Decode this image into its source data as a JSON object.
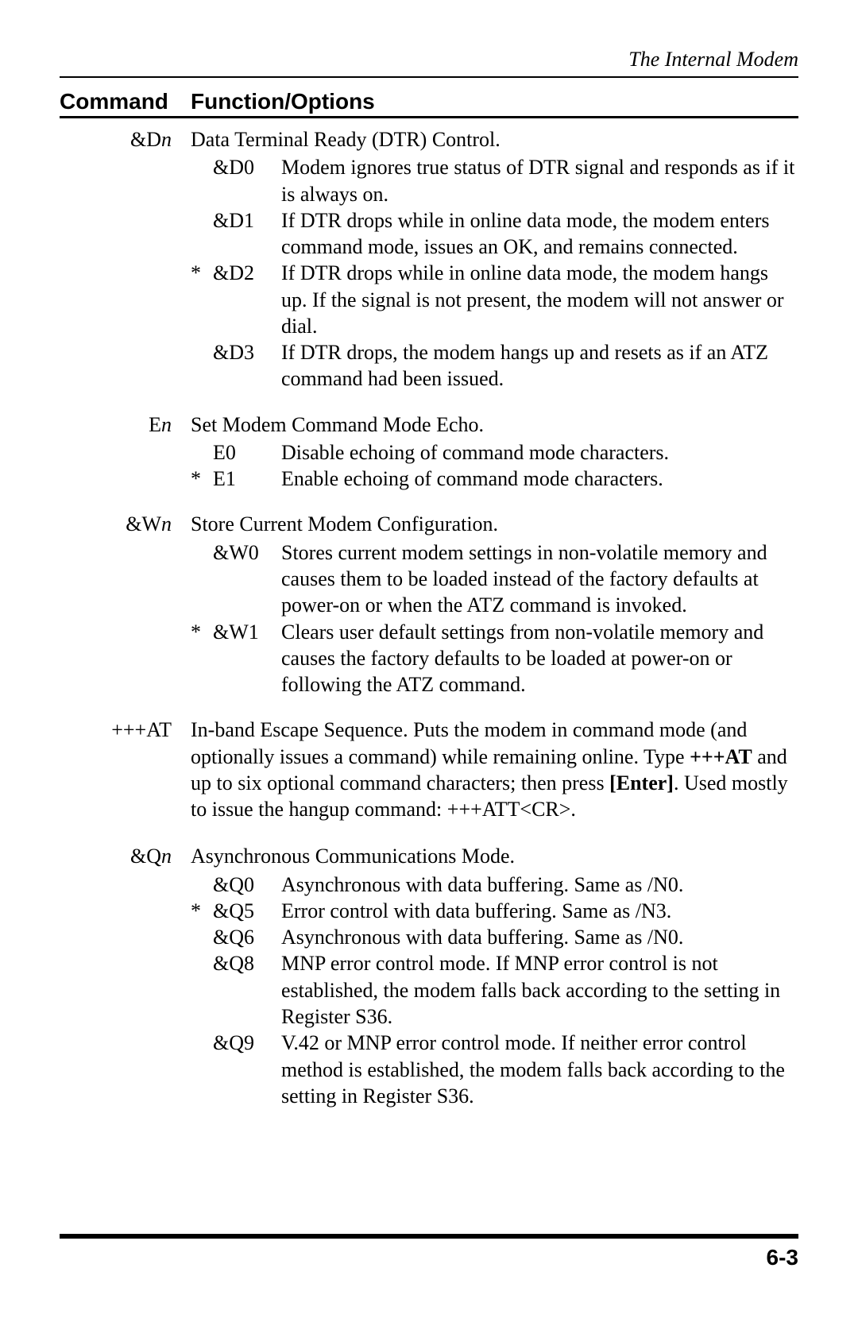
{
  "running_head": "The Internal Modem",
  "page_number": "6-3",
  "headers": {
    "command": "Command",
    "function": "Function/Options"
  },
  "entries": [
    {
      "cmd_prefix": "&D",
      "cmd_var": "n",
      "summary": "Data Terminal Ready (DTR) Control.",
      "options": [
        {
          "star": "",
          "code": "&D0",
          "desc": "Modem ignores true status of DTR signal and responds as if it is always on."
        },
        {
          "star": "",
          "code": "&D1",
          "desc": "If DTR drops while in online data mode, the modem enters command mode, issues an OK, and remains connected."
        },
        {
          "star": "*",
          "code": "&D2",
          "desc": "If DTR drops while in online data mode, the modem hangs up.  If the signal is not present, the modem will not answer or dial."
        },
        {
          "star": "",
          "code": "&D3",
          "desc": "If DTR drops, the modem hangs up and resets as if an ATZ command had been issued."
        }
      ]
    },
    {
      "cmd_prefix": "E",
      "cmd_var": "n",
      "summary": "Set Modem Command Mode Echo.",
      "options": [
        {
          "star": "",
          "code": "E0",
          "desc": "Disable echoing of command mode characters."
        },
        {
          "star": "*",
          "code": "E1",
          "desc": "Enable echoing of command mode characters."
        }
      ]
    },
    {
      "cmd_prefix": "&W",
      "cmd_var": "n",
      "summary": "Store Current Modem Configuration.",
      "options": [
        {
          "star": "",
          "code": "&W0",
          "desc": "Stores current modem settings in non-volatile memory and causes them to be loaded instead of the factory defaults at power-on or when the ATZ command is invoked."
        },
        {
          "star": "*",
          "code": "&W1",
          "desc": "Clears user default settings from non-volatile memory and causes the factory defaults to be loaded at power-on or following the ATZ command."
        }
      ]
    },
    {
      "cmd_prefix": "+++AT",
      "cmd_var": "",
      "rich_summary": {
        "parts": [
          {
            "t": "In-band Escape Sequence.  Puts the modem in command mode (and optionally issues a command) while remaining online.  Type ",
            "b": false
          },
          {
            "t": "+++AT",
            "b": true
          },
          {
            "t": " and up to six optional command characters; then press ",
            "b": false
          },
          {
            "t": "[Enter]",
            "b": true
          },
          {
            "t": ".  Used mostly to issue the hangup command: +++ATT<CR>.",
            "b": false
          }
        ]
      },
      "options": []
    },
    {
      "cmd_prefix": "&Q",
      "cmd_var": "n",
      "summary": "Asynchronous Communications Mode.",
      "options": [
        {
          "star": "",
          "code": "&Q0",
          "desc": "Asynchronous with data buffering.  Same as /N0."
        },
        {
          "star": "*",
          "code": "&Q5",
          "desc": "Error control with data buffering.  Same as /N3."
        },
        {
          "star": "",
          "code": "&Q6",
          "desc": "Asynchronous with data buffering.  Same as /N0."
        },
        {
          "star": "",
          "code": "&Q8",
          "desc": "MNP error control mode.  If MNP error control is not established, the modem falls back according to the setting in Register S36."
        },
        {
          "star": "",
          "code": "&Q9",
          "desc": "V.42 or MNP error control mode.  If neither error control method is established, the modem falls back according to the setting in Register S36."
        }
      ]
    }
  ]
}
